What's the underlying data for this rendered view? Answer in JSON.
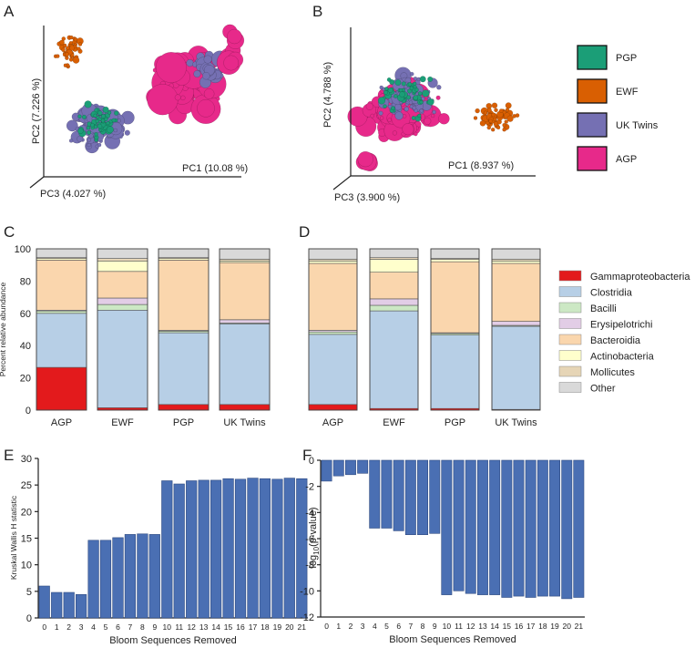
{
  "panels": {
    "A": {
      "letter": "A",
      "pc1": "PC1 (10.08 %)",
      "pc2": "PC2 (7.226 %)",
      "pc3": "PC3 (4.027 %)"
    },
    "B": {
      "letter": "B",
      "pc1": "PC1 (8.937 %)",
      "pc2": "PC2 (4.788 %)",
      "pc3": "PC3 (3.900 %)"
    },
    "C": {
      "letter": "C"
    },
    "D": {
      "letter": "D"
    },
    "E": {
      "letter": "E"
    },
    "F": {
      "letter": "F"
    }
  },
  "group_legend": [
    {
      "label": "PGP",
      "color": "#1b9e77"
    },
    {
      "label": "EWF",
      "color": "#d95f02"
    },
    {
      "label": "UK Twins",
      "color": "#7570b3"
    },
    {
      "label": "AGP",
      "color": "#e7298a"
    }
  ],
  "taxa_legend": [
    {
      "label": "Gammaproteobacteria",
      "color": "#e31a1c"
    },
    {
      "label": "Clostridia",
      "color": "#b7cfe6"
    },
    {
      "label": "Bacilli",
      "color": "#cce8c4"
    },
    {
      "label": "Erysipelotrichi",
      "color": "#e2cde6"
    },
    {
      "label": "Bacteroidia",
      "color": "#fad6ad"
    },
    {
      "label": "Actinobacteria",
      "color": "#ffffcc"
    },
    {
      "label": "Mollicutes",
      "color": "#e6d5b6"
    },
    {
      "label": "Other",
      "color": "#d9d9d9"
    }
  ],
  "chart_data": [
    {
      "panel": "C",
      "type": "bar",
      "stacked": true,
      "categories": [
        "AGP",
        "EWF",
        "PGP",
        "UK Twins"
      ],
      "ylabel": "Percent relative abundance",
      "ylim": [
        0,
        100
      ],
      "yticks": [
        "0",
        "20",
        "40",
        "60",
        "80",
        "100"
      ],
      "series": [
        {
          "name": "Gammaproteobacteria",
          "values": [
            26.5,
            1.5,
            3.5,
            3.5
          ]
        },
        {
          "name": "Clostridia",
          "values": [
            33.5,
            60.5,
            44.5,
            50
          ]
        },
        {
          "name": "Bacilli",
          "values": [
            1.5,
            3.5,
            1,
            0.5
          ]
        },
        {
          "name": "Erysipelotrichi",
          "values": [
            0.5,
            4,
            0.5,
            2
          ]
        },
        {
          "name": "Bacteroidia",
          "values": [
            31,
            16.5,
            43.5,
            35.5
          ]
        },
        {
          "name": "Actinobacteria",
          "values": [
            1,
            6.5,
            1,
            1
          ]
        },
        {
          "name": "Mollicutes",
          "values": [
            0.5,
            1.5,
            0.5,
            1
          ]
        },
        {
          "name": "Other",
          "values": [
            5.5,
            6,
            5.5,
            6.5
          ]
        }
      ]
    },
    {
      "panel": "D",
      "type": "bar",
      "stacked": true,
      "categories": [
        "AGP",
        "EWF",
        "PGP",
        "UK Twins"
      ],
      "ylabel": "",
      "ylim": [
        0,
        100
      ],
      "series": [
        {
          "name": "Gammaproteobacteria",
          "values": [
            3.5,
            1,
            1,
            0.5
          ]
        },
        {
          "name": "Clostridia",
          "values": [
            43.5,
            60.5,
            45.5,
            51.5
          ]
        },
        {
          "name": "Bacilli",
          "values": [
            1.5,
            3.5,
            1,
            0.5
          ]
        },
        {
          "name": "Erysipelotrichi",
          "values": [
            1,
            4,
            0.5,
            2.5
          ]
        },
        {
          "name": "Bacteroidia",
          "values": [
            41.5,
            16.5,
            44,
            36
          ]
        },
        {
          "name": "Actinobacteria",
          "values": [
            1.5,
            8,
            1.5,
            1.5
          ]
        },
        {
          "name": "Mollicutes",
          "values": [
            1,
            1,
            0.5,
            1
          ]
        },
        {
          "name": "Other",
          "values": [
            6.5,
            5.5,
            6,
            6.5
          ]
        }
      ]
    },
    {
      "panel": "E",
      "type": "bar",
      "categories": [
        "0",
        "1",
        "2",
        "3",
        "4",
        "5",
        "6",
        "7",
        "8",
        "9",
        "10",
        "11",
        "12",
        "13",
        "14",
        "15",
        "16",
        "17",
        "18",
        "19",
        "20",
        "21"
      ],
      "values": [
        6,
        4.8,
        4.8,
        4.4,
        14.6,
        14.6,
        15.1,
        15.7,
        15.8,
        15.7,
        25.8,
        25.2,
        25.8,
        25.9,
        25.9,
        26.2,
        26.1,
        26.3,
        26.2,
        26.1,
        26.3,
        26.2
      ],
      "xlabel": "Bloom Sequences Removed",
      "ylabel": "Kruskal Wallis H statistic",
      "ylim": [
        0,
        30
      ],
      "yticks": [
        "0",
        "5",
        "10",
        "15",
        "20",
        "25",
        "30"
      ]
    },
    {
      "panel": "F",
      "type": "bar",
      "categories": [
        "0",
        "1",
        "2",
        "3",
        "4",
        "5",
        "6",
        "7",
        "8",
        "9",
        "10",
        "11",
        "12",
        "13",
        "14",
        "15",
        "16",
        "17",
        "18",
        "19",
        "20",
        "21"
      ],
      "values": [
        -1.6,
        -1.2,
        -1.1,
        -1.0,
        -5.2,
        -5.2,
        -5.4,
        -5.7,
        -5.7,
        -5.6,
        -10.3,
        -10.0,
        -10.2,
        -10.3,
        -10.3,
        -10.5,
        -10.4,
        -10.5,
        -10.4,
        -10.4,
        -10.6,
        -10.5
      ],
      "xlabel": "Bloom Sequences Removed",
      "ylabel": "log10(p-value)",
      "ylabel_base": "log",
      "ylabel_sub": "10",
      "ylabel_rest": "(p-value)",
      "ylim": [
        -12,
        0
      ],
      "yticks": [
        "0",
        "-2",
        "-4",
        "-6",
        "-8",
        "-10",
        "-12"
      ]
    }
  ]
}
